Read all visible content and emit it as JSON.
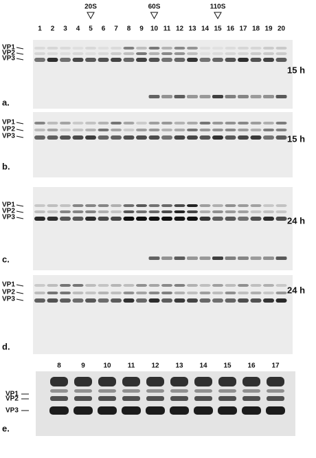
{
  "markers": [
    "20S",
    "60S",
    "110S"
  ],
  "lanes": [
    1,
    2,
    3,
    4,
    5,
    6,
    7,
    8,
    9,
    10,
    11,
    12,
    13,
    14,
    15,
    16,
    17,
    18,
    19,
    20
  ],
  "panels": [
    {
      "letter": "a.",
      "time": "15 h",
      "bands": [
        "VP1",
        "VP2",
        "VP3"
      ]
    },
    {
      "letter": "b.",
      "time": "15 h",
      "bands": [
        "VP1",
        "VP2",
        "VP3"
      ]
    },
    {
      "letter": "c.",
      "time": "24 h",
      "bands": [
        "VP1",
        "VP2",
        "VP3"
      ]
    },
    {
      "letter": "d.",
      "time": "24 h",
      "bands": [
        "VP1",
        "VP2",
        "VP3"
      ]
    }
  ],
  "panel_e": {
    "letter": "e.",
    "lanes": [
      8,
      9,
      10,
      11,
      12,
      13,
      14,
      15,
      16,
      17
    ],
    "bands": [
      "VP1",
      "VP2",
      "VP3"
    ]
  }
}
